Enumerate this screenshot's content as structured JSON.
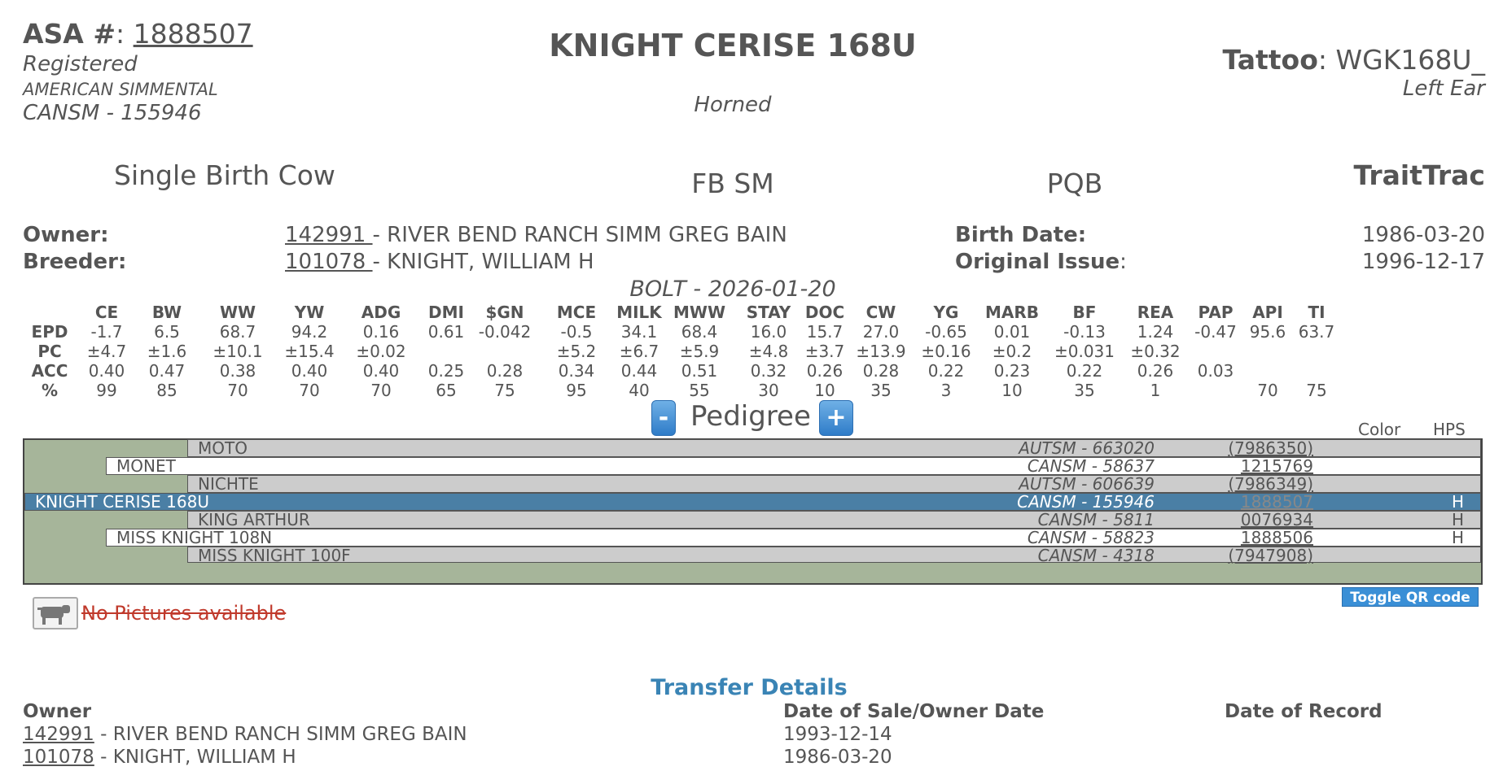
{
  "header": {
    "asa_label": "ASA #",
    "asa_sep": ":",
    "asa_number": "1888507",
    "reg_status": "Registered",
    "breed_name": "AMERICAN SIMMENTAL",
    "breed_reg": "CANSM - 155946",
    "animal_name": "KNIGHT CERISE 168U",
    "horn_status": "Horned",
    "tattoo_label": "Tattoo",
    "tattoo_value": ": WGK168U_",
    "tattoo_location": "Left Ear"
  },
  "summary": {
    "birth_type": "Single Birth Cow",
    "breed_code": "FB SM",
    "pqb": "PQB",
    "traittrac": "TraitTrac"
  },
  "details": {
    "owner_label": "Owner:",
    "owner_id": "142991 ",
    "owner_name": "- RIVER BEND RANCH SIMM GREG BAIN",
    "breeder_label": "Breeder:",
    "breeder_id": "101078 ",
    "breeder_name": "- KNIGHT, WILLIAM H",
    "birth_label": "Birth Date:",
    "birth_value": "1986-03-20",
    "orig_label": "Original Issue",
    "orig_sep": ":",
    "orig_value": "1996-12-17"
  },
  "bolt": "BOLT - 2026-01-20",
  "epd": {
    "columns": [
      "CE",
      "BW",
      "WW",
      "YW",
      "ADG",
      "DMI",
      "$GN",
      "MCE",
      "MILK",
      "MWW",
      "STAY",
      "DOC",
      "CW",
      "YG",
      "MARB",
      "BF",
      "REA",
      "PAP",
      "API",
      "TI"
    ],
    "rows": [
      {
        "label": "EPD",
        "values": [
          "-1.7",
          "6.5",
          "68.7",
          "94.2",
          "0.16",
          "0.61",
          "-0.042",
          "-0.5",
          "34.1",
          "68.4",
          "16.0",
          "15.7",
          "27.0",
          "-0.65",
          "0.01",
          "-0.13",
          "1.24",
          "-0.47",
          "95.6",
          "63.7"
        ]
      },
      {
        "label": "PC",
        "values": [
          "±4.7",
          "±1.6",
          "±10.1",
          "±15.4",
          "±0.02",
          "",
          "",
          "±5.2",
          "±6.7",
          "±5.9",
          "±4.8",
          "±3.7",
          "±13.9",
          "±0.16",
          "±0.2",
          "±0.031",
          "±0.32",
          "",
          "",
          ""
        ]
      },
      {
        "label": "ACC",
        "values": [
          "0.40",
          "0.47",
          "0.38",
          "0.40",
          "0.40",
          "0.25",
          "0.28",
          "0.34",
          "0.44",
          "0.51",
          "0.32",
          "0.26",
          "0.28",
          "0.22",
          "0.23",
          "0.22",
          "0.26",
          "0.03",
          "",
          ""
        ]
      },
      {
        "label": "%",
        "values": [
          "99",
          "85",
          "70",
          "70",
          "70",
          "65",
          "75",
          "95",
          "40",
          "55",
          "30",
          "10",
          "35",
          "3",
          "10",
          "35",
          "1",
          "",
          "70",
          "75"
        ]
      }
    ]
  },
  "pedigree": {
    "minus": "-",
    "plus": "+",
    "title": "Pedigree",
    "col_color": "Color",
    "col_hps": "HPS",
    "rows": [
      {
        "name": "MOTO",
        "reg": "AUTSM - 663020",
        "num": "(7986350)",
        "hps": ""
      },
      {
        "name": "MONET",
        "reg": "CANSM - 58637",
        "num": "1215769",
        "hps": ""
      },
      {
        "name": "NICHTE",
        "reg": "AUTSM - 606639",
        "num": "(7986349)",
        "hps": ""
      },
      {
        "name": "KNIGHT CERISE 168U",
        "reg": "CANSM - 155946",
        "num": "1888507",
        "hps": "H"
      },
      {
        "name": "KING ARTHUR",
        "reg": "CANSM - 5811",
        "num": "0076934",
        "hps": "H"
      },
      {
        "name": "MISS KNIGHT 108N",
        "reg": "CANSM - 58823",
        "num": "1888506",
        "hps": "H"
      },
      {
        "name": "MISS KNIGHT 100F",
        "reg": "CANSM - 4318",
        "num": "(7947908)",
        "hps": ""
      }
    ]
  },
  "qr_button": "Toggle QR code",
  "no_pictures": "No Pictures available",
  "transfer": {
    "title": "Transfer Details",
    "col_owner": "Owner",
    "col_date": "Date of Sale/Owner Date",
    "col_record": "Date of Record",
    "rows": [
      {
        "id": "142991",
        "name": " - RIVER BEND RANCH SIMM GREG BAIN",
        "date": "1993-12-14"
      },
      {
        "id": "101078",
        "name": " - KNIGHT, WILLIAM H",
        "date": "1986-03-20"
      }
    ]
  },
  "colors": {
    "selected_row": "#4a7fa5",
    "gen3_row": "#cccccc",
    "pedigree_bg": "#a6b59a",
    "accent": "#3a84b5",
    "no_pictures": "#c0392b"
  }
}
